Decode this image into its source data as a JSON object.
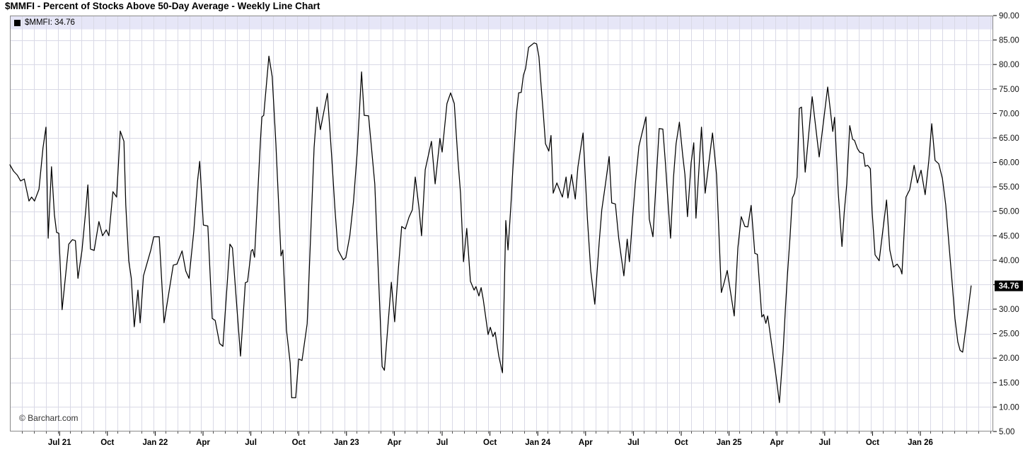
{
  "header": {
    "title": "$MMFI - Percent of Stocks Above 50-Day Average - Weekly Line Chart"
  },
  "legend": {
    "swatch_color": "#000000",
    "label": "$MMFI: 34.76"
  },
  "watermark": "© Barchart.com",
  "colors": {
    "line": "#000000",
    "grid": "#d9d9e6",
    "frame": "#8a8a8a",
    "legend_bg": "#e6e6f7",
    "badge_bg": "#000000",
    "badge_text": "#ffffff",
    "axis_text": "#111111"
  },
  "chart_data": {
    "type": "line",
    "title": "$MMFI - Percent of Stocks Above 50-Day Average - Weekly Line Chart",
    "series_name": "$MMFI",
    "last_value": 34.76,
    "last_value_label": "34.76",
    "xlabel": "",
    "ylabel": "",
    "ylim": [
      5,
      90
    ],
    "y_step": 5,
    "grid": true,
    "legend_position": "top-left",
    "y_axis": {
      "side": "right",
      "tick_values": [
        90,
        85,
        80,
        75,
        70,
        65,
        60,
        55,
        50,
        45,
        40,
        35,
        30,
        25,
        20,
        15,
        10,
        5
      ],
      "tick_labels": [
        "90.00",
        "85.00",
        "80.00",
        "75.00",
        "70.00",
        "65.00",
        "60.00",
        "55.00",
        "50.00",
        "45.00",
        "40.00",
        "35.00",
        "30.00",
        "25.00",
        "20.00",
        "15.00",
        "10.00",
        "5.00"
      ]
    },
    "x_axis": {
      "unit": "weeks since 2021-04-02",
      "tick_weeks": [
        13.5,
        26.5,
        39.5,
        52.5,
        65.5,
        78.5,
        91.5,
        104.5,
        117.5,
        130.5,
        143.5,
        156.5,
        169.5,
        182.5,
        195.5,
        208.5,
        221.5,
        234.5,
        247.5
      ],
      "tick_labels": [
        "Jul 21",
        "Oct",
        "Jan 22",
        "Apr",
        "Jul",
        "Oct",
        "Jan 23",
        "Apr",
        "Jul",
        "Oct",
        "Jan 24",
        "Apr",
        "Jul",
        "Oct",
        "Jan 25",
        "Apr",
        "Jul",
        "Oct",
        "Jan 26"
      ]
    },
    "points": [
      [
        0,
        59.5
      ],
      [
        1,
        58.2
      ],
      [
        2,
        57.4
      ],
      [
        2.9,
        56.2
      ],
      [
        3.9,
        56.6
      ],
      [
        5.2,
        52.1
      ],
      [
        5.9,
        52.9
      ],
      [
        6.7,
        52.1
      ],
      [
        7.9,
        54.5
      ],
      [
        9,
        63
      ],
      [
        9.8,
        67.2
      ],
      [
        10.4,
        44.5
      ],
      [
        11.3,
        59.1
      ],
      [
        12.1,
        49.3
      ],
      [
        12.7,
        45.7
      ],
      [
        13.3,
        45.5
      ],
      [
        14.2,
        29.9
      ],
      [
        15.2,
        37.3
      ],
      [
        16,
        43.3
      ],
      [
        17,
        44.2
      ],
      [
        17.8,
        44
      ],
      [
        18.5,
        36.3
      ],
      [
        19.6,
        42
      ],
      [
        20.6,
        50
      ],
      [
        21.2,
        55.4
      ],
      [
        21.9,
        42.3
      ],
      [
        22.9,
        42
      ],
      [
        24.2,
        47.9
      ],
      [
        25.2,
        45
      ],
      [
        26.2,
        46.2
      ],
      [
        26.9,
        45
      ],
      [
        28,
        54
      ],
      [
        29,
        52.9
      ],
      [
        30,
        66.4
      ],
      [
        31,
        64.3
      ],
      [
        31.5,
        51.3
      ],
      [
        32.3,
        39.9
      ],
      [
        33,
        36.3
      ],
      [
        33.8,
        26.4
      ],
      [
        34.8,
        33.9
      ],
      [
        35.4,
        27.2
      ],
      [
        36.3,
        36.8
      ],
      [
        38.3,
        42.1
      ],
      [
        39.1,
        44.8
      ],
      [
        40.6,
        44.8
      ],
      [
        41.9,
        27.2
      ],
      [
        44.4,
        39
      ],
      [
        45.4,
        39.2
      ],
      [
        46.8,
        41.9
      ],
      [
        47.8,
        37.8
      ],
      [
        48.7,
        36.3
      ],
      [
        50,
        46
      ],
      [
        51,
        56.1
      ],
      [
        51.6,
        60.2
      ],
      [
        52.6,
        47.2
      ],
      [
        53.8,
        47
      ],
      [
        55,
        28.1
      ],
      [
        55.8,
        27.7
      ],
      [
        57,
        23
      ],
      [
        57.9,
        22.4
      ],
      [
        59.8,
        43.3
      ],
      [
        60.5,
        42.5
      ],
      [
        62.7,
        20.4
      ],
      [
        64,
        35.4
      ],
      [
        64.6,
        35.6
      ],
      [
        65.6,
        41.9
      ],
      [
        66,
        42.2
      ],
      [
        66.5,
        40.6
      ],
      [
        68.1,
        64.3
      ],
      [
        68.5,
        69.3
      ],
      [
        69,
        69.6
      ],
      [
        70.4,
        81.7
      ],
      [
        71.3,
        77.5
      ],
      [
        72.3,
        63.8
      ],
      [
        73.7,
        40.9
      ],
      [
        74.2,
        42.1
      ],
      [
        75.2,
        25.7
      ],
      [
        76.2,
        19
      ],
      [
        76.6,
        11.9
      ],
      [
        77.7,
        11.9
      ],
      [
        78.5,
        19.8
      ],
      [
        79.4,
        19.5
      ],
      [
        80.8,
        27
      ],
      [
        81.8,
        46
      ],
      [
        82.7,
        63
      ],
      [
        83.5,
        71.3
      ],
      [
        84.4,
        66.7
      ],
      [
        86.3,
        74.1
      ],
      [
        87.4,
        62
      ],
      [
        88.4,
        50
      ],
      [
        89.2,
        42.1
      ],
      [
        90.6,
        40.1
      ],
      [
        91.3,
        40.5
      ],
      [
        92.4,
        45
      ],
      [
        93.4,
        52
      ],
      [
        94.4,
        62
      ],
      [
        95.6,
        78.5
      ],
      [
        96.3,
        69.6
      ],
      [
        97.5,
        69.5
      ],
      [
        99.2,
        55.6
      ],
      [
        101.2,
        18.3
      ],
      [
        101.8,
        17.5
      ],
      [
        103.7,
        35.5
      ],
      [
        104.6,
        27.4
      ],
      [
        105.6,
        38.2
      ],
      [
        106.5,
        46.9
      ],
      [
        107.5,
        46.4
      ],
      [
        108.5,
        48.8
      ],
      [
        109.4,
        50.3
      ],
      [
        110.2,
        57
      ],
      [
        111.2,
        50.8
      ],
      [
        111.9,
        45
      ],
      [
        112.9,
        58.5
      ],
      [
        114.6,
        64.3
      ],
      [
        115.6,
        55.6
      ],
      [
        116.9,
        64.9
      ],
      [
        117.5,
        62.1
      ],
      [
        118.8,
        72
      ],
      [
        119.8,
        74.2
      ],
      [
        120.8,
        72
      ],
      [
        121.8,
        60.4
      ],
      [
        122.5,
        53.7
      ],
      [
        123.3,
        39.7
      ],
      [
        124.2,
        46.5
      ],
      [
        125.2,
        35.7
      ],
      [
        126.2,
        33.9
      ],
      [
        126.7,
        34.6
      ],
      [
        127.5,
        32.7
      ],
      [
        128.1,
        34.4
      ],
      [
        128.7,
        31.9
      ],
      [
        130,
        24.8
      ],
      [
        130.6,
        26.3
      ],
      [
        131.3,
        24.4
      ],
      [
        131.9,
        25.3
      ],
      [
        132.9,
        20.4
      ],
      [
        133.9,
        17
      ],
      [
        134.8,
        48.1
      ],
      [
        135.4,
        42.1
      ],
      [
        136.2,
        51.2
      ],
      [
        136.7,
        58.2
      ],
      [
        137.7,
        70
      ],
      [
        138.3,
        74.2
      ],
      [
        139,
        74.3
      ],
      [
        139.6,
        77.8
      ],
      [
        140.2,
        79.2
      ],
      [
        141,
        83.5
      ],
      [
        142.5,
        84.4
      ],
      [
        143.2,
        84.2
      ],
      [
        143.8,
        81.6
      ],
      [
        144.4,
        75.6
      ],
      [
        145,
        70
      ],
      [
        145.6,
        63.8
      ],
      [
        146.5,
        62.3
      ],
      [
        147.1,
        65.5
      ],
      [
        147.7,
        53.7
      ],
      [
        148.7,
        55.8
      ],
      [
        150.2,
        52.9
      ],
      [
        151.2,
        57
      ],
      [
        151.7,
        52.7
      ],
      [
        152.7,
        57.5
      ],
      [
        153.7,
        52.5
      ],
      [
        154.4,
        59
      ],
      [
        155.8,
        66
      ],
      [
        157,
        48.4
      ],
      [
        157.9,
        37.8
      ],
      [
        159,
        31
      ],
      [
        160.2,
        43.6
      ],
      [
        160.9,
        50.3
      ],
      [
        161.9,
        55.6
      ],
      [
        162.9,
        61.2
      ],
      [
        163.6,
        51.7
      ],
      [
        164.6,
        51.5
      ],
      [
        165.5,
        44.5
      ],
      [
        166.9,
        36.8
      ],
      [
        167.8,
        44.3
      ],
      [
        168.4,
        39.7
      ],
      [
        169.4,
        49.8
      ],
      [
        170,
        55.6
      ],
      [
        171,
        63.3
      ],
      [
        172.9,
        69.3
      ],
      [
        173.8,
        48.4
      ],
      [
        174.8,
        44.8
      ],
      [
        175.6,
        55.1
      ],
      [
        176.5,
        66.9
      ],
      [
        177.5,
        66.8
      ],
      [
        178.2,
        59.9
      ],
      [
        179,
        50.8
      ],
      [
        179.6,
        44.5
      ],
      [
        180.4,
        57
      ],
      [
        181.1,
        63.8
      ],
      [
        182,
        68.2
      ],
      [
        182.9,
        61.4
      ],
      [
        183.5,
        57.5
      ],
      [
        184.2,
        48.9
      ],
      [
        185.2,
        59.9
      ],
      [
        185.9,
        64
      ],
      [
        186.5,
        48.6
      ],
      [
        188,
        67.2
      ],
      [
        189,
        53.7
      ],
      [
        191,
        66
      ],
      [
        192.1,
        57.5
      ],
      [
        193.4,
        33.4
      ],
      [
        194.2,
        35.5
      ],
      [
        195,
        37.9
      ],
      [
        196,
        33
      ],
      [
        196.9,
        28.6
      ],
      [
        197.9,
        42.6
      ],
      [
        198.8,
        48.9
      ],
      [
        199.8,
        46.9
      ],
      [
        200.6,
        46.8
      ],
      [
        201.5,
        51.2
      ],
      [
        202.5,
        41.4
      ],
      [
        203.2,
        41.2
      ],
      [
        204.4,
        28.4
      ],
      [
        204.9,
        28.9
      ],
      [
        205.5,
        27.1
      ],
      [
        206,
        28.6
      ],
      [
        208.3,
        16.1
      ],
      [
        209.2,
        10.9
      ],
      [
        210.2,
        21.4
      ],
      [
        210.8,
        30
      ],
      [
        211.3,
        36.3
      ],
      [
        212.1,
        45
      ],
      [
        212.7,
        52.7
      ],
      [
        213.3,
        53.7
      ],
      [
        214,
        57
      ],
      [
        214.6,
        71
      ],
      [
        215.2,
        71.3
      ],
      [
        216.2,
        58
      ],
      [
        218.1,
        73.4
      ],
      [
        220,
        61.1
      ],
      [
        222.3,
        75.4
      ],
      [
        223.7,
        66.3
      ],
      [
        224.2,
        69.2
      ],
      [
        225.2,
        53.7
      ],
      [
        226.2,
        42.8
      ],
      [
        226.8,
        49.8
      ],
      [
        227.5,
        55.6
      ],
      [
        228.3,
        67.5
      ],
      [
        229.1,
        64.7
      ],
      [
        229.6,
        64.5
      ],
      [
        230.4,
        62.8
      ],
      [
        231,
        62.1
      ],
      [
        232,
        61.8
      ],
      [
        232.5,
        59.2
      ],
      [
        233.2,
        59.4
      ],
      [
        233.9,
        58.7
      ],
      [
        234.4,
        49.8
      ],
      [
        235.2,
        41.1
      ],
      [
        236.3,
        39.9
      ],
      [
        238.3,
        52.3
      ],
      [
        239.2,
        42.1
      ],
      [
        240.2,
        38.6
      ],
      [
        241.2,
        39.2
      ],
      [
        242.1,
        38.2
      ],
      [
        242.5,
        37.2
      ],
      [
        243.6,
        52.9
      ],
      [
        244.6,
        54.4
      ],
      [
        245.8,
        59.4
      ],
      [
        246.7,
        55.8
      ],
      [
        247.7,
        58.4
      ],
      [
        248.8,
        53.4
      ],
      [
        249.8,
        60.4
      ],
      [
        250.6,
        67.9
      ],
      [
        251.5,
        60.4
      ],
      [
        252.5,
        59.7
      ],
      [
        253.5,
        56.7
      ],
      [
        254.4,
        51.3
      ],
      [
        255.4,
        42.1
      ],
      [
        256.3,
        33.9
      ],
      [
        256.9,
        28.1
      ],
      [
        257.7,
        23.3
      ],
      [
        258.3,
        21.6
      ],
      [
        259,
        21.2
      ],
      [
        260.4,
        29.3
      ],
      [
        261.3,
        34.76
      ]
    ]
  }
}
